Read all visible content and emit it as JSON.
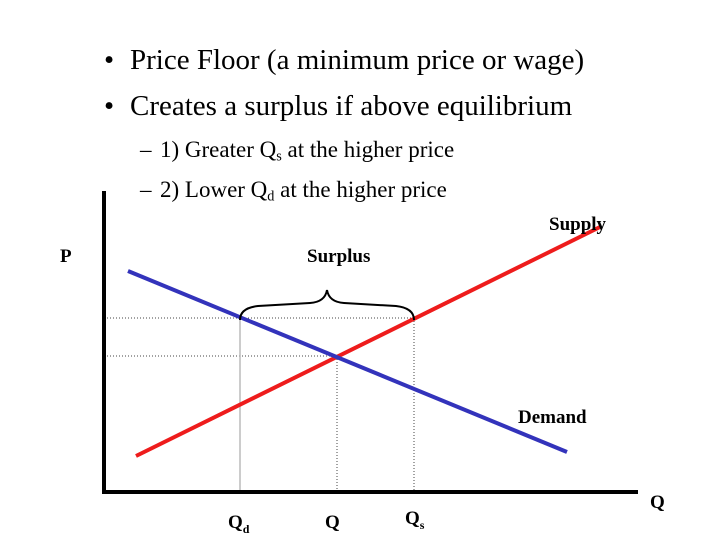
{
  "bullets": [
    {
      "level": 1,
      "text": "Price Floor (a minimum price or wage)"
    },
    {
      "level": 1,
      "text": "Creates a surplus if above equilibrium"
    },
    {
      "level": 2,
      "prefix": "1) Greater Q",
      "sub": "s",
      "suffix": " at the higher price"
    },
    {
      "level": 2,
      "prefix": "2) Lower Q",
      "sub": "d",
      "suffix": " at the higher price"
    }
  ],
  "bullet_marks": {
    "level1": "•",
    "level2": "–"
  },
  "diagram": {
    "axis_y_label": "P",
    "axis_x_label": "Q",
    "supply_label": "Supply",
    "demand_label": "Demand",
    "surplus_label": "Surplus",
    "tick_qd_main": "Q",
    "tick_qd_sub": "d",
    "tick_q": "Q",
    "tick_qs_main": "Q",
    "tick_qs_sub": "s",
    "colors": {
      "supply": "#ee1c1c",
      "demand": "#3333bb",
      "axis": "#000000",
      "guide": "#444444"
    }
  }
}
